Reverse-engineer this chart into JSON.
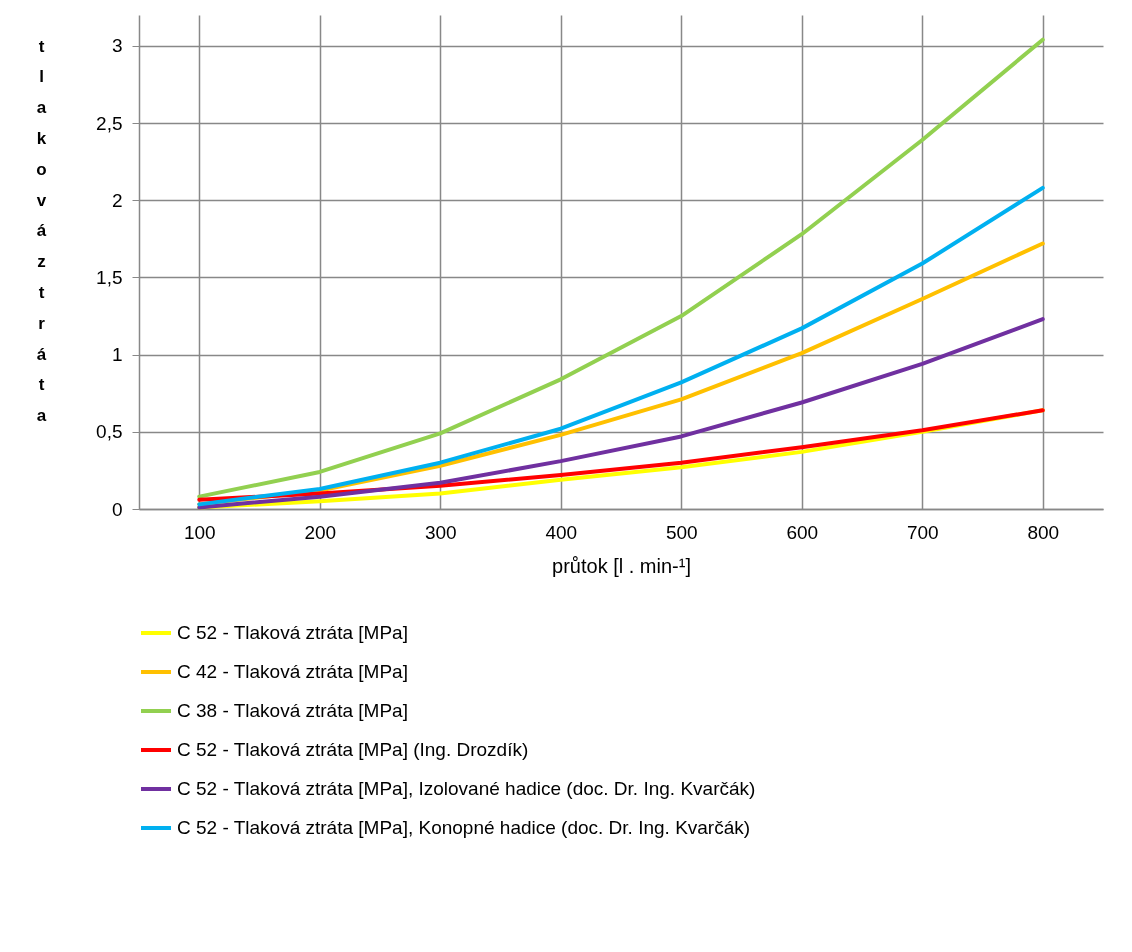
{
  "chart_data": {
    "type": "line",
    "xlabel": "průtok [l . min-¹]",
    "ylabel": "tlaková ztráta",
    "categories": [
      "100",
      "200",
      "300",
      "400",
      "500",
      "600",
      "700",
      "800"
    ],
    "ylim": [
      0,
      3.2
    ],
    "yticks": [
      0,
      {
        "value": 0.5,
        "label": "0,5"
      },
      1,
      {
        "value": 1.5,
        "label": "1,5"
      },
      2,
      {
        "value": 2.5,
        "label": "2,5"
      },
      3
    ],
    "grid": true,
    "legend": "bottom",
    "line_style": "solid",
    "marker": "none",
    "series": [
      {
        "name": "C 52 - Tlaková ztráta [MPa]",
        "color": "#ffff00",
        "values": [
          0.01,
          0.05,
          0.1,
          0.19,
          0.27,
          0.37,
          0.5,
          0.64
        ]
      },
      {
        "name": "C 42 - Tlaková ztráta [MPa]",
        "color": "#ffc000",
        "values": [
          0.03,
          0.12,
          0.28,
          0.48,
          0.71,
          1.01,
          1.36,
          1.72
        ]
      },
      {
        "name": "C 38 - Tlaková ztráta [MPa]",
        "color": "#92d050",
        "values": [
          0.08,
          0.24,
          0.49,
          0.84,
          1.25,
          1.78,
          2.39,
          3.04
        ]
      },
      {
        "name": "C 52 - Tlaková ztráta [MPa] (Ing. Drozdík)",
        "color": "#ff0000",
        "values": [
          0.06,
          0.1,
          0.15,
          0.22,
          0.3,
          0.4,
          0.51,
          0.64
        ]
      },
      {
        "name": "C 52 - Tlaková ztráta [MPa], Izolované hadice (doc. Dr. Ing. Kvarčák)",
        "color": "#7030a0",
        "values": [
          0.01,
          0.08,
          0.17,
          0.31,
          0.47,
          0.69,
          0.94,
          1.23
        ]
      },
      {
        "name": "C 52 - Tlaková ztráta [MPa], Konopné  hadice (doc. Dr. Ing. Kvarčák)",
        "color": "#00b0f0",
        "values": [
          0.03,
          0.13,
          0.3,
          0.52,
          0.82,
          1.17,
          1.59,
          2.08
        ]
      }
    ]
  }
}
